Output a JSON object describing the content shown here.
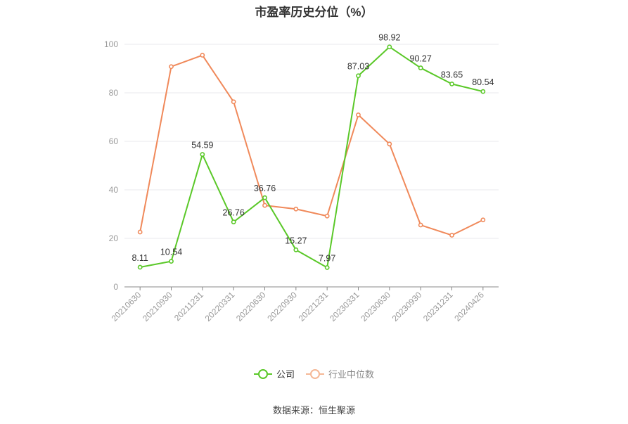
{
  "title": "市盈率历史分位（%）",
  "source": "数据来源：恒生聚源",
  "colors": {
    "company": "#5ac828",
    "industry": "#f0895a",
    "industry_legend": "#f5b896",
    "grid": "#e8e8ec",
    "axis": "#888888"
  },
  "chart_data": {
    "type": "line",
    "title": "市盈率历史分位（%）",
    "categories": [
      "20210630",
      "20210930",
      "20211231",
      "20220331",
      "20220630",
      "20220930",
      "20221231",
      "20230331",
      "20230630",
      "20230930",
      "20231231",
      "20240426"
    ],
    "ylim": [
      0,
      100
    ],
    "yticks": [
      0,
      20,
      40,
      60,
      80,
      100
    ],
    "grid": true,
    "legend_position": "bottom",
    "series": [
      {
        "name": "公司",
        "values": [
          8.11,
          10.54,
          54.59,
          26.76,
          36.76,
          15.27,
          7.97,
          87.03,
          98.92,
          90.27,
          83.65,
          80.54
        ],
        "labels": true
      },
      {
        "name": "行业中位数",
        "values": [
          22.6,
          90.8,
          95.5,
          76.3,
          33.6,
          32.1,
          29.2,
          70.9,
          58.9,
          25.5,
          21.3,
          27.6
        ],
        "labels": false
      }
    ]
  }
}
